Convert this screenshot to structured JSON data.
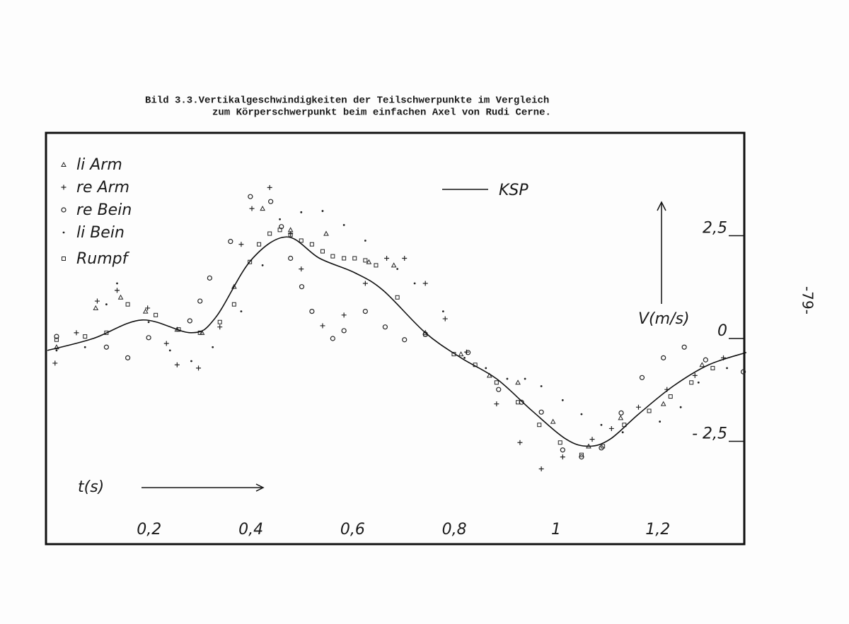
{
  "chart_data": {
    "type": "scatter",
    "title": "Bild 3.3.Vertikalgeschwindigkeiten der Teilschwerpunkte im Vergleich",
    "subtitle": "zum Körperschwerpunkt beim einfachen Axel von Rudi Cerne.",
    "x_label": "t(s)",
    "y_label": "V(m/s)",
    "page_number": "-79-",
    "xlim": [
      0,
      1.37
    ],
    "ylim": [
      -5,
      5
    ],
    "xticks": [
      {
        "value": 0.2,
        "label": "0,2"
      },
      {
        "value": 0.4,
        "label": "0,4"
      },
      {
        "value": 0.6,
        "label": "0,6"
      },
      {
        "value": 0.8,
        "label": "0,8"
      },
      {
        "value": 1,
        "label": "1"
      },
      {
        "value": 1.2,
        "label": "1,2"
      }
    ],
    "yticks": [
      {
        "value": 2.5,
        "label": "2,5"
      },
      0,
      {
        "value": -2.5,
        "label": "- 2,5"
      }
    ],
    "legend": "upper left",
    "series": [
      {
        "name": "li Arm",
        "marker": "triangle",
        "color": "#222222",
        "x": [
          0.018,
          0.095,
          0.144,
          0.193,
          0.255,
          0.304,
          0.367,
          0.423,
          0.478,
          0.548,
          0.632,
          0.681,
          0.743,
          0.813,
          0.869,
          0.925,
          0.994,
          1.064,
          1.127,
          1.211,
          1.287
        ],
        "values": [
          -0.21,
          0.74,
          1.0,
          0.66,
          0.22,
          0.14,
          1.26,
          3.16,
          2.64,
          2.55,
          1.86,
          1.78,
          0.14,
          -0.38,
          -0.9,
          -1.07,
          -2.02,
          -2.62,
          -1.93,
          -1.59,
          -0.64
        ]
      },
      {
        "name": "re Arm",
        "marker": "plus",
        "color": "#222222",
        "x": [
          0.015,
          0.057,
          0.098,
          0.137,
          0.197,
          0.234,
          0.255,
          0.297,
          0.339,
          0.381,
          0.402,
          0.437,
          0.478,
          0.499,
          0.541,
          0.583,
          0.625,
          0.667,
          0.702,
          0.743,
          0.782,
          0.824,
          0.883,
          0.929,
          0.971,
          1.013,
          1.071,
          1.109,
          1.162,
          1.218,
          1.273,
          1.329
        ],
        "values": [
          -0.6,
          0.14,
          0.91,
          1.17,
          0.74,
          -0.12,
          -0.64,
          -0.72,
          0.28,
          2.29,
          3.16,
          3.67,
          2.55,
          1.69,
          0.31,
          0.57,
          1.34,
          1.95,
          1.95,
          1.34,
          0.48,
          -0.33,
          -1.59,
          -2.53,
          -3.17,
          -2.88,
          -2.45,
          -2.19,
          -1.67,
          -1.24,
          -0.9,
          -0.47
        ]
      },
      {
        "name": "re Bein",
        "marker": "circle",
        "color": "#222222",
        "x": [
          0.018,
          0.116,
          0.158,
          0.199,
          0.28,
          0.3,
          0.319,
          0.36,
          0.399,
          0.439,
          0.46,
          0.478,
          0.5,
          0.52,
          0.561,
          0.583,
          0.625,
          0.664,
          0.702,
          0.743,
          0.827,
          0.887,
          0.932,
          0.971,
          1.013,
          1.05,
          1.089,
          1.128,
          1.169,
          1.211,
          1.252,
          1.294,
          1.368
        ],
        "values": [
          0.05,
          -0.21,
          -0.47,
          0.02,
          0.43,
          0.91,
          1.47,
          2.36,
          3.45,
          3.33,
          2.72,
          1.95,
          1.26,
          0.66,
          0.0,
          0.19,
          0.66,
          0.28,
          -0.03,
          0.1,
          -0.34,
          -1.24,
          -1.55,
          -1.79,
          -2.71,
          -2.88,
          -2.66,
          -1.81,
          -0.95,
          -0.47,
          -0.21,
          -0.52,
          -0.81
        ]
      },
      {
        "name": "li Bein",
        "marker": "dot",
        "color": "#222222",
        "x": [
          0.018,
          0.074,
          0.116,
          0.137,
          0.199,
          0.241,
          0.283,
          0.325,
          0.381,
          0.423,
          0.457,
          0.499,
          0.541,
          0.583,
          0.625,
          0.688,
          0.722,
          0.778,
          0.82,
          0.862,
          0.904,
          0.939,
          0.971,
          1.013,
          1.05,
          1.089,
          1.131,
          1.204,
          1.245,
          1.28,
          1.336
        ],
        "values": [
          -0.29,
          -0.21,
          0.83,
          1.34,
          0.4,
          -0.29,
          -0.55,
          -0.21,
          0.66,
          1.78,
          2.9,
          3.07,
          3.1,
          2.76,
          2.38,
          1.69,
          1.34,
          0.66,
          -0.47,
          -0.72,
          -0.98,
          -0.98,
          -1.16,
          -1.5,
          -1.84,
          -2.1,
          -2.28,
          -2.02,
          -1.67,
          -1.07,
          -0.72
        ]
      },
      {
        "name": "Rumpf",
        "marker": "square",
        "color": "#222222",
        "x": [
          0.018,
          0.074,
          0.116,
          0.158,
          0.213,
          0.258,
          0.3,
          0.339,
          0.367,
          0.398,
          0.416,
          0.437,
          0.457,
          0.478,
          0.499,
          0.52,
          0.541,
          0.561,
          0.583,
          0.604,
          0.625,
          0.646,
          0.688,
          0.743,
          0.799,
          0.841,
          0.883,
          0.925,
          0.967,
          1.008,
          1.05,
          1.092,
          1.134,
          1.183,
          1.225,
          1.266,
          1.308
        ],
        "values": [
          -0.03,
          0.05,
          0.14,
          0.83,
          0.57,
          0.22,
          0.14,
          0.4,
          0.83,
          1.86,
          2.29,
          2.55,
          2.64,
          2.52,
          2.38,
          2.29,
          2.12,
          2.0,
          1.95,
          1.95,
          1.9,
          1.78,
          1.0,
          0.1,
          -0.38,
          -0.64,
          -1.07,
          -1.55,
          -2.1,
          -2.53,
          -2.83,
          -2.62,
          -2.1,
          -1.76,
          -1.41,
          -1.07,
          -0.72
        ]
      },
      {
        "name": "KSP",
        "marker": "line",
        "color": "#111111",
        "x": [
          0.0,
          0.09,
          0.186,
          0.283,
          0.33,
          0.4,
          0.47,
          0.535,
          0.604,
          0.66,
          0.743,
          0.813,
          0.883,
          0.953,
          1.02,
          1.064,
          1.106,
          1.162,
          1.23,
          1.3,
          1.374
        ],
        "values": [
          -0.29,
          0.0,
          0.45,
          0.14,
          0.5,
          1.9,
          2.47,
          1.95,
          1.6,
          1.17,
          0.14,
          -0.47,
          -0.98,
          -1.76,
          -2.45,
          -2.62,
          -2.45,
          -1.84,
          -1.16,
          -0.64,
          -0.34
        ]
      }
    ]
  }
}
